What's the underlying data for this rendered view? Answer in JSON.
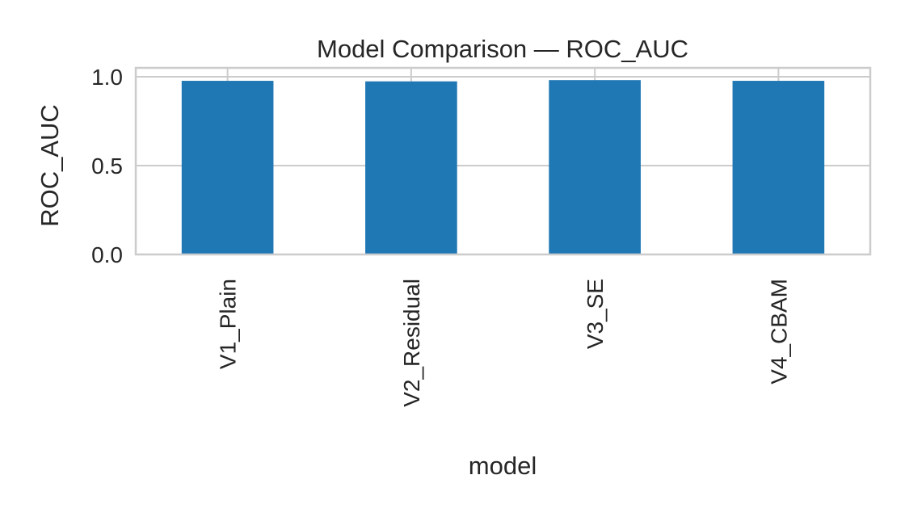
{
  "chart_data": {
    "type": "bar",
    "title": "Model Comparison — ROC_AUC",
    "xlabel": "model",
    "ylabel": "ROC_AUC",
    "categories": [
      "V1_Plain",
      "V2_Residual",
      "V3_SE",
      "V4_CBAM"
    ],
    "values": [
      0.977,
      0.974,
      0.981,
      0.977
    ],
    "ylim": [
      0,
      1.05
    ],
    "yticks": [
      0.0,
      0.5,
      1.0
    ],
    "ytick_labels": [
      "0.0",
      "0.5",
      "1.0"
    ],
    "grid": true,
    "legend": "none",
    "bar_color": "#1f77b4",
    "grid_color": "#cccccc",
    "text_color": "#262626"
  }
}
